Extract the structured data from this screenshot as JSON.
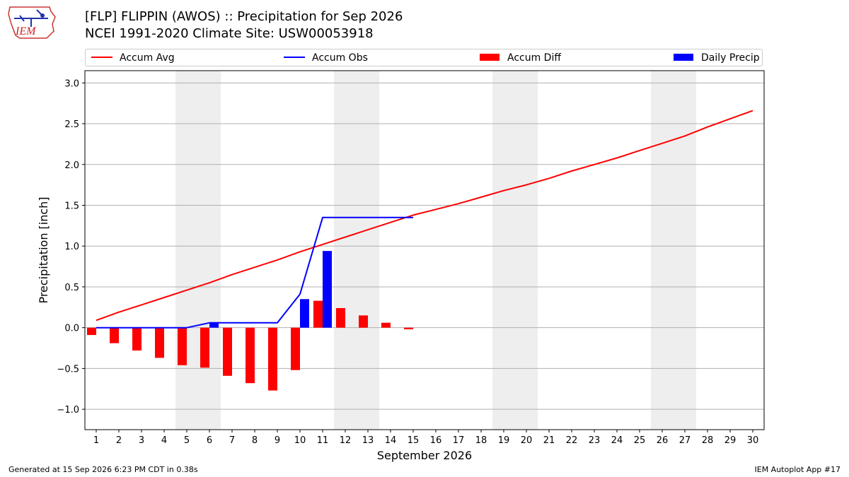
{
  "title_line1": "[FLP] FLIPPIN (AWOS) :: Precipitation for Sep 2026",
  "title_line2": "NCEI 1991-2020 Climate Site: USW00053918",
  "logo_text": "IEM",
  "footer_left": "Generated at 15 Sep 2026 6:23 PM CDT in 0.38s",
  "footer_right": "IEM Autoplot App #17",
  "colors": {
    "avg": "#ff0000",
    "obs": "#0000ff",
    "diff": "#ff0000",
    "daily": "#0000ff",
    "weekend": "#eeeeee",
    "grid": "#b0b0b0"
  },
  "legend": [
    {
      "label": "Accum Avg",
      "kind": "line",
      "color": "#ff0000"
    },
    {
      "label": "Accum Obs",
      "kind": "line",
      "color": "#0000ff"
    },
    {
      "label": "Accum Diff",
      "kind": "box",
      "color": "#ff0000"
    },
    {
      "label": "Daily Precip",
      "kind": "box",
      "color": "#0000ff"
    }
  ],
  "chart_data": {
    "type": "bar",
    "xlabel": "September 2026",
    "ylabel": "Precipitation [inch]",
    "ylim": [
      -1.25,
      3.15
    ],
    "yticks": [
      -1.0,
      -0.5,
      0.0,
      0.5,
      1.0,
      1.5,
      2.0,
      2.5,
      3.0
    ],
    "ytick_labels": [
      "−1.0",
      "−0.5",
      "0.0",
      "0.5",
      "1.0",
      "1.5",
      "2.0",
      "2.5",
      "3.0"
    ],
    "x": [
      1,
      2,
      3,
      4,
      5,
      6,
      7,
      8,
      9,
      10,
      11,
      12,
      13,
      14,
      15,
      16,
      17,
      18,
      19,
      20,
      21,
      22,
      23,
      24,
      25,
      26,
      27,
      28,
      29,
      30
    ],
    "weekend_days": [
      5,
      6,
      12,
      13,
      19,
      20,
      26,
      27
    ],
    "grid": true,
    "legend_position": "top",
    "series": [
      {
        "name": "Accum Avg",
        "kind": "line",
        "x": [
          1,
          2,
          3,
          4,
          5,
          6,
          7,
          8,
          9,
          10,
          11,
          12,
          13,
          14,
          15,
          16,
          17,
          18,
          19,
          20,
          21,
          22,
          23,
          24,
          25,
          26,
          27,
          28,
          29,
          30
        ],
        "values": [
          0.09,
          0.19,
          0.28,
          0.37,
          0.46,
          0.55,
          0.65,
          0.74,
          0.83,
          0.93,
          1.02,
          1.11,
          1.2,
          1.29,
          1.38,
          1.45,
          1.52,
          1.6,
          1.68,
          1.75,
          1.83,
          1.92,
          2.0,
          2.08,
          2.17,
          2.26,
          2.35,
          2.46,
          2.56,
          2.66
        ]
      },
      {
        "name": "Accum Obs",
        "kind": "line",
        "x": [
          1,
          2,
          3,
          4,
          5,
          6,
          7,
          8,
          9,
          10,
          11,
          12,
          13,
          14,
          15
        ],
        "values": [
          0.0,
          0.0,
          0.0,
          0.0,
          0.0,
          0.06,
          0.06,
          0.06,
          0.06,
          0.41,
          1.35,
          1.35,
          1.35,
          1.35,
          1.35
        ]
      },
      {
        "name": "Accum Diff",
        "kind": "bar",
        "x": [
          1,
          2,
          3,
          4,
          5,
          6,
          7,
          8,
          9,
          10,
          11,
          12,
          13,
          14,
          15
        ],
        "values": [
          -0.09,
          -0.19,
          -0.28,
          -0.37,
          -0.46,
          -0.49,
          -0.59,
          -0.68,
          -0.77,
          -0.52,
          0.33,
          0.24,
          0.15,
          0.06,
          -0.02
        ]
      },
      {
        "name": "Daily Precip",
        "kind": "bar",
        "x": [
          6,
          10,
          11
        ],
        "values": [
          0.06,
          0.35,
          0.94
        ]
      }
    ]
  }
}
